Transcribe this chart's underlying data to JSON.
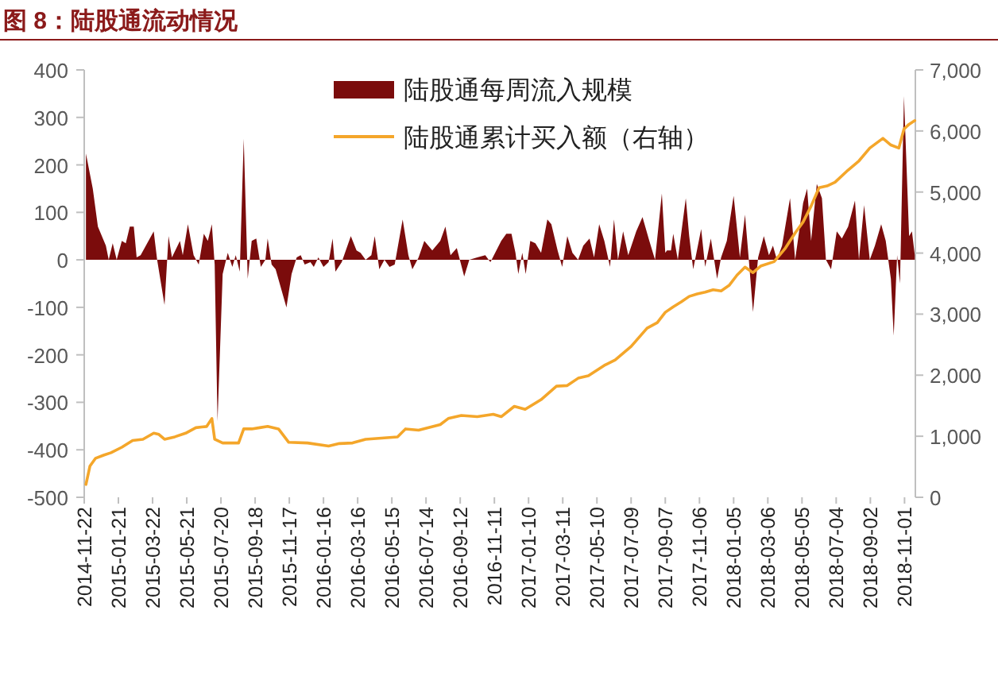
{
  "chart_data": {
    "type": "area",
    "title": "图 8：陆股通流动情况",
    "legend": "top",
    "xlim": [
      "2014-11-22",
      "2018-11-20"
    ],
    "xticks": [
      "2014-11-22",
      "2015-01-21",
      "2015-03-22",
      "2015-05-21",
      "2015-07-20",
      "2015-09-18",
      "2015-11-17",
      "2016-01-16",
      "2016-03-16",
      "2016-05-15",
      "2016-07-14",
      "2016-09-12",
      "2016-11-11",
      "2017-01-10",
      "2017-03-11",
      "2017-05-10",
      "2017-07-09",
      "2017-09-07",
      "2017-11-06",
      "2018-01-05",
      "2018-03-06",
      "2018-05-05",
      "2018-07-04",
      "2018-09-02",
      "2018-11-01"
    ],
    "ylim": [
      -500,
      400
    ],
    "yticks": [
      -500,
      -400,
      -300,
      -200,
      -100,
      0,
      100,
      200,
      300,
      400
    ],
    "y2lim": [
      0,
      7000
    ],
    "y2ticks": [
      {
        "value": 0,
        "label": "0"
      },
      {
        "value": 1000,
        "label": "1,000"
      },
      {
        "value": 2000,
        "label": "2,000"
      },
      {
        "value": 3000,
        "label": "3,000"
      },
      {
        "value": 4000,
        "label": "4,000"
      },
      {
        "value": 5000,
        "label": "5,000"
      },
      {
        "value": 6000,
        "label": "6,000"
      },
      {
        "value": 7000,
        "label": "7,000"
      }
    ],
    "series": [
      {
        "name": "陆股通每周流入规模",
        "type": "area",
        "color": "#7b0c0c",
        "x": [
          "2014-11-25",
          "2014-12-07",
          "2014-12-16",
          "2014-12-30",
          "2015-01-04",
          "2015-01-11",
          "2015-01-18",
          "2015-01-27",
          "2015-02-03",
          "2015-02-10",
          "2015-02-17",
          "2015-02-22",
          "2015-03-01",
          "2015-03-24",
          "2015-03-30",
          "2015-04-12",
          "2015-04-19",
          "2015-04-25",
          "2015-05-09",
          "2015-05-14",
          "2015-05-23",
          "2015-06-02",
          "2015-06-11",
          "2015-06-20",
          "2015-06-27",
          "2015-07-04",
          "2015-07-09",
          "2015-07-14",
          "2015-07-23",
          "2015-08-01",
          "2015-08-09",
          "2015-08-15",
          "2015-08-22",
          "2015-08-29",
          "2015-09-05",
          "2015-09-12",
          "2015-09-20",
          "2015-09-28",
          "2015-10-06",
          "2015-10-10",
          "2015-10-17",
          "2015-10-24",
          "2015-11-12",
          "2015-11-21",
          "2015-11-30",
          "2015-12-07",
          "2015-12-14",
          "2015-12-24",
          "2015-12-30",
          "2016-01-07",
          "2016-01-16",
          "2016-01-25",
          "2016-02-01",
          "2016-02-06",
          "2016-02-17",
          "2016-03-04",
          "2016-03-14",
          "2016-03-21",
          "2016-03-30",
          "2016-04-09",
          "2016-04-15",
          "2016-04-23",
          "2016-05-02",
          "2016-05-11",
          "2016-05-20",
          "2016-06-03",
          "2016-06-13",
          "2016-06-20",
          "2016-07-01",
          "2016-07-11",
          "2016-07-25",
          "2016-08-08",
          "2016-08-17",
          "2016-08-26",
          "2016-09-06",
          "2016-09-19",
          "2016-09-28",
          "2016-10-12",
          "2016-10-26",
          "2016-11-04",
          "2016-11-23",
          "2016-12-02",
          "2016-12-11",
          "2016-12-18",
          "2016-12-23",
          "2016-12-30",
          "2017-01-05",
          "2017-01-13",
          "2017-01-22",
          "2017-02-01",
          "2017-02-12",
          "2017-02-19",
          "2017-03-02",
          "2017-03-10",
          "2017-03-19",
          "2017-03-28",
          "2017-04-07",
          "2017-04-16",
          "2017-04-27",
          "2017-05-05",
          "2017-05-14",
          "2017-05-23",
          "2017-06-02",
          "2017-06-09",
          "2017-06-16",
          "2017-06-25",
          "2017-07-04",
          "2017-07-18",
          "2017-07-29",
          "2017-08-10",
          "2017-08-20",
          "2017-09-01",
          "2017-09-07",
          "2017-09-10",
          "2017-09-17",
          "2017-09-21",
          "2017-09-29",
          "2017-10-13",
          "2017-10-19",
          "2017-10-26",
          "2017-11-09",
          "2017-11-16",
          "2017-11-26",
          "2017-12-07",
          "2017-12-14",
          "2017-12-24",
          "2018-01-05",
          "2018-01-16",
          "2018-01-25",
          "2018-02-01",
          "2018-02-08",
          "2018-02-17",
          "2018-02-27",
          "2018-03-08",
          "2018-03-15",
          "2018-03-22",
          "2018-03-31",
          "2018-04-14",
          "2018-04-23",
          "2018-05-07",
          "2018-05-14",
          "2018-05-21",
          "2018-05-31",
          "2018-06-09",
          "2018-06-16",
          "2018-06-25",
          "2018-07-05",
          "2018-07-14",
          "2018-07-25",
          "2018-08-06",
          "2018-08-13",
          "2018-08-22",
          "2018-09-01",
          "2018-09-10",
          "2018-09-21",
          "2018-09-29",
          "2018-10-08",
          "2018-10-13",
          "2018-10-19",
          "2018-10-24",
          "2018-10-31",
          "2018-11-09",
          "2018-11-14",
          "2018-11-19"
        ],
        "values": [
          224,
          150,
          70,
          30,
          0,
          35,
          0,
          40,
          35,
          70,
          70,
          5,
          10,
          60,
          0,
          -95,
          50,
          5,
          40,
          10,
          75,
          10,
          -10,
          55,
          40,
          75,
          -10,
          -340,
          -30,
          15,
          -15,
          10,
          -25,
          255,
          -40,
          40,
          45,
          -15,
          0,
          45,
          -10,
          -20,
          -100,
          -30,
          5,
          10,
          -10,
          -5,
          -15,
          5,
          -15,
          -5,
          45,
          -25,
          -5,
          50,
          20,
          15,
          0,
          10,
          50,
          -20,
          0,
          -15,
          -10,
          85,
          10,
          -20,
          5,
          40,
          20,
          40,
          70,
          10,
          25,
          -35,
          0,
          5,
          10,
          -5,
          40,
          55,
          55,
          15,
          -30,
          15,
          -30,
          40,
          35,
          15,
          85,
          75,
          20,
          -15,
          50,
          15,
          0,
          30,
          45,
          5,
          75,
          40,
          -15,
          85,
          0,
          60,
          10,
          60,
          90,
          40,
          0,
          140,
          15,
          20,
          20,
          55,
          0,
          130,
          50,
          -20,
          65,
          -15,
          45,
          -40,
          5,
          40,
          135,
          5,
          95,
          -5,
          -110,
          5,
          50,
          10,
          30,
          0,
          30,
          130,
          0,
          120,
          150,
          40,
          160,
          130,
          0,
          -20,
          60,
          45,
          70,
          125,
          0,
          115,
          0,
          30,
          75,
          40,
          -40,
          -160,
          10,
          -50,
          345,
          50,
          60,
          10
        ]
      },
      {
        "name": "陆股通累计买入额（右轴）",
        "type": "line",
        "axis": "y2",
        "color": "#f4a62a",
        "x": [
          "2014-11-25",
          "2014-12-02",
          "2014-12-12",
          "2014-12-26",
          "2015-01-08",
          "2015-01-27",
          "2015-02-15",
          "2015-03-05",
          "2015-03-24",
          "2015-04-02",
          "2015-04-12",
          "2015-04-30",
          "2015-05-19",
          "2015-06-06",
          "2015-06-25",
          "2015-07-04",
          "2015-07-09",
          "2015-07-23",
          "2015-08-20",
          "2015-08-29",
          "2015-09-12",
          "2015-09-26",
          "2015-10-10",
          "2015-10-29",
          "2015-11-16",
          "2015-12-19",
          "2016-01-25",
          "2016-02-13",
          "2016-03-07",
          "2016-03-30",
          "2016-04-27",
          "2016-05-25",
          "2016-06-08",
          "2016-07-01",
          "2016-08-08",
          "2016-08-22",
          "2016-09-14",
          "2016-10-12",
          "2016-11-09",
          "2016-11-23",
          "2016-12-16",
          "2017-01-04",
          "2017-02-01",
          "2017-02-28",
          "2017-03-19",
          "2017-04-07",
          "2017-04-25",
          "2017-05-23",
          "2017-06-11",
          "2017-07-09",
          "2017-08-06",
          "2017-08-24",
          "2017-09-07",
          "2017-09-21",
          "2017-10-05",
          "2017-10-19",
          "2017-11-02",
          "2017-11-16",
          "2017-11-30",
          "2017-12-14",
          "2017-12-28",
          "2018-01-11",
          "2018-01-25",
          "2018-02-08",
          "2018-02-22",
          "2018-03-17",
          "2018-04-05",
          "2018-04-23",
          "2018-05-07",
          "2018-05-21",
          "2018-06-04",
          "2018-06-18",
          "2018-07-02",
          "2018-07-25",
          "2018-08-13",
          "2018-09-01",
          "2018-09-24",
          "2018-10-08",
          "2018-10-22",
          "2018-10-31",
          "2018-11-09",
          "2018-11-19"
        ],
        "values": [
          210,
          510,
          640,
          690,
          730,
          820,
          930,
          950,
          1050,
          1030,
          950,
          990,
          1050,
          1140,
          1160,
          1290,
          950,
          890,
          890,
          1120,
          1120,
          1140,
          1160,
          1120,
          900,
          890,
          840,
          880,
          890,
          950,
          970,
          990,
          1120,
          1100,
          1190,
          1290,
          1340,
          1320,
          1360,
          1320,
          1490,
          1440,
          1600,
          1820,
          1830,
          1950,
          1990,
          2160,
          2250,
          2470,
          2770,
          2860,
          3030,
          3120,
          3200,
          3290,
          3330,
          3360,
          3400,
          3380,
          3470,
          3640,
          3770,
          3680,
          3790,
          3860,
          4070,
          4330,
          4510,
          4770,
          5070,
          5100,
          5160,
          5360,
          5510,
          5720,
          5880,
          5770,
          5720,
          6030,
          6110,
          6170
        ]
      }
    ]
  }
}
